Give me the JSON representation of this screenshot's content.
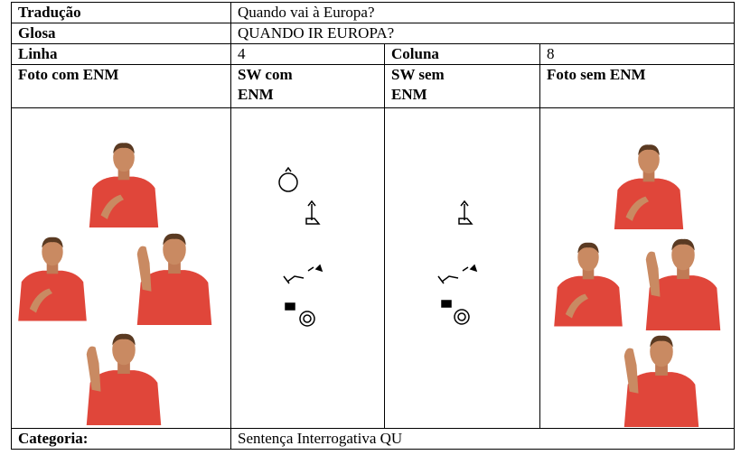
{
  "rows": [
    {
      "label": "Tradução",
      "value": "Quando vai à Europa?"
    },
    {
      "label": "Glosa",
      "value": "QUANDO IR EUROPA?"
    }
  ],
  "linha": {
    "label": "Linha",
    "value": "4"
  },
  "coluna": {
    "label": "Coluna",
    "value": "8"
  },
  "headers": [
    "Foto com ENM",
    "SW com ENM",
    "SW sem ENM",
    "Foto sem ENM"
  ],
  "categoria": {
    "label": "Categoria:",
    "value": "Sentença Interrogativa QU"
  }
}
